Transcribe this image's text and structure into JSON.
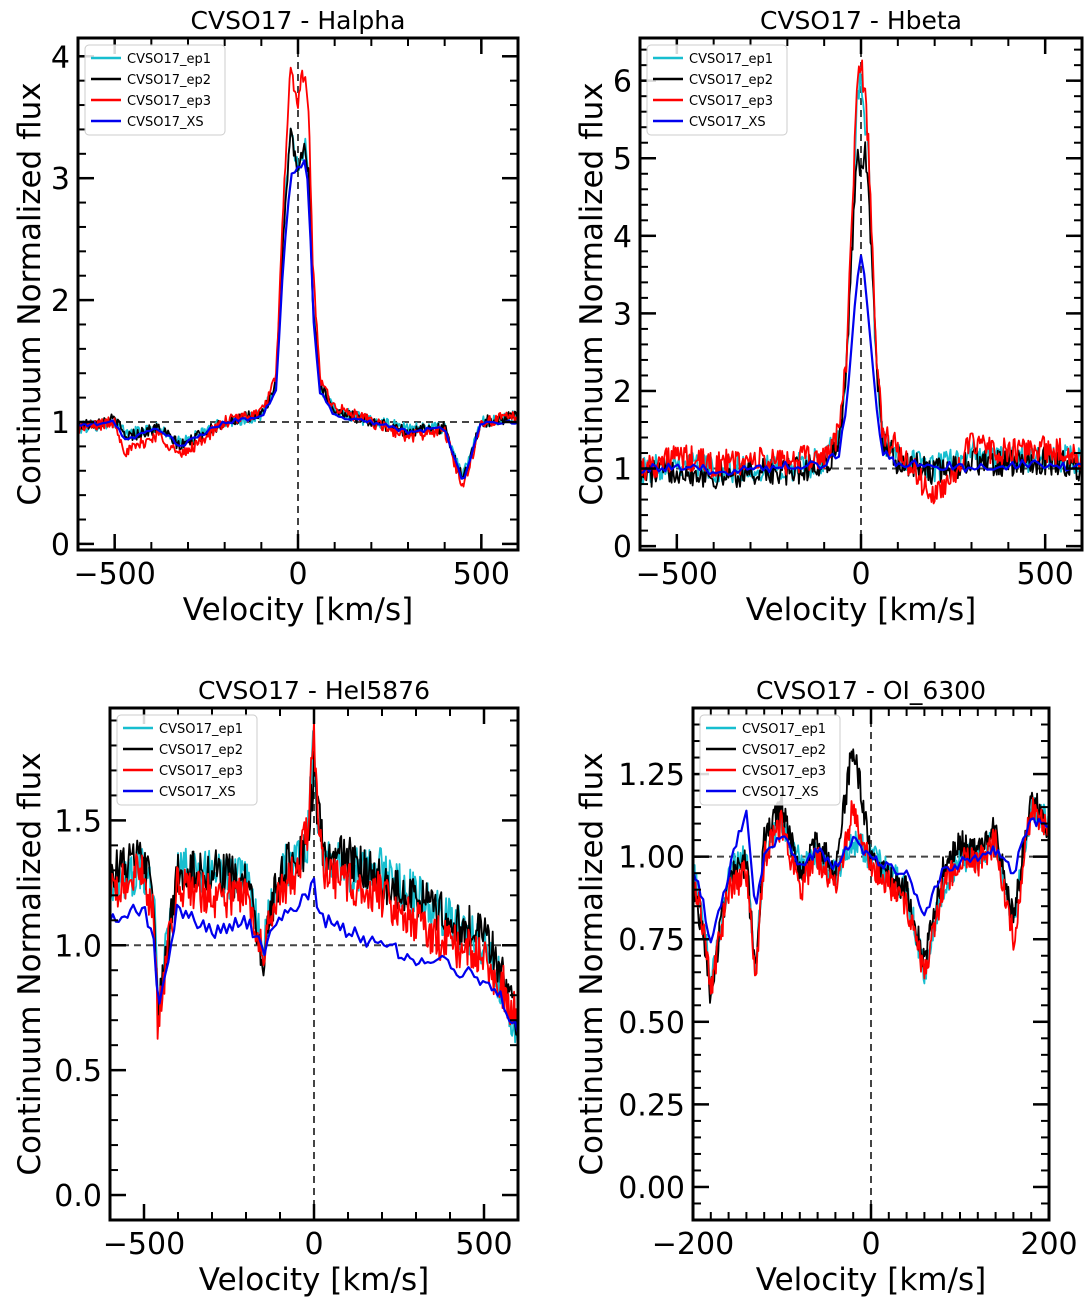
{
  "figure": {
    "background": "#ffffff"
  },
  "series_styles": [
    {
      "name": "CVSO17_ep1",
      "color": "#17becf"
    },
    {
      "name": "CVSO17_ep2",
      "color": "#000000"
    },
    {
      "name": "CVSO17_ep3",
      "color": "#ff0000"
    },
    {
      "name": "CVSO17_XS",
      "color": "#0000ee"
    }
  ],
  "chart_data": [
    {
      "type": "line",
      "title": "CVSO17 - Halpha",
      "xlabel": "Velocity [km/s]",
      "ylabel": "Continuum Normalized flux",
      "xlim": [
        -600,
        600
      ],
      "ylim": [
        -0.05,
        4.15
      ],
      "xticks": [
        -500,
        0,
        500
      ],
      "xtick_labels": [
        "−500",
        "0",
        "500"
      ],
      "xminor_step": 100,
      "yticks": [
        0,
        1,
        2,
        3,
        4
      ],
      "ytick_labels": [
        "0",
        "1",
        "2",
        "3",
        "4"
      ],
      "yminor_step": 0.2,
      "hline": 1.0,
      "vline": 0,
      "legend": "top-left",
      "series": [
        {
          "name": "CVSO17_ep1",
          "x": [
            -600,
            -500,
            -470,
            -380,
            -320,
            -200,
            -100,
            -60,
            -40,
            -20,
            -10,
            0,
            10,
            20,
            30,
            40,
            60,
            100,
            200,
            300,
            400,
            450,
            500,
            600
          ],
          "y": [
            0.95,
            1.0,
            0.9,
            0.95,
            0.82,
            1.0,
            1.05,
            1.3,
            2.6,
            3.45,
            3.2,
            3.1,
            3.15,
            3.3,
            3.0,
            2.0,
            1.3,
            1.1,
            1.0,
            0.95,
            0.95,
            0.55,
            1.0,
            1.05
          ]
        },
        {
          "name": "CVSO17_ep2",
          "x": [
            -600,
            -500,
            -470,
            -380,
            -320,
            -200,
            -100,
            -60,
            -40,
            -20,
            -10,
            0,
            10,
            20,
            30,
            40,
            60,
            100,
            200,
            300,
            400,
            450,
            500,
            600
          ],
          "y": [
            0.97,
            1.02,
            0.88,
            0.95,
            0.8,
            1.0,
            1.06,
            1.3,
            2.5,
            3.4,
            3.2,
            3.05,
            3.2,
            3.25,
            3.0,
            2.0,
            1.3,
            1.1,
            1.0,
            0.92,
            0.95,
            0.52,
            1.0,
            1.05
          ]
        },
        {
          "name": "CVSO17_ep3",
          "x": [
            -600,
            -500,
            -470,
            -380,
            -320,
            -200,
            -100,
            -60,
            -40,
            -20,
            -10,
            0,
            10,
            20,
            30,
            40,
            60,
            100,
            200,
            300,
            400,
            450,
            500,
            600
          ],
          "y": [
            0.95,
            1.0,
            0.75,
            0.9,
            0.72,
            1.0,
            1.08,
            1.35,
            2.8,
            3.95,
            3.7,
            3.6,
            3.85,
            3.8,
            3.5,
            2.3,
            1.35,
            1.12,
            1.0,
            0.88,
            0.93,
            0.45,
            1.0,
            1.05
          ]
        },
        {
          "name": "CVSO17_XS",
          "x": [
            -600,
            -500,
            -470,
            -380,
            -320,
            -200,
            -100,
            -60,
            -40,
            -20,
            -10,
            0,
            10,
            20,
            30,
            40,
            60,
            100,
            200,
            300,
            400,
            450,
            500,
            600
          ],
          "y": [
            0.97,
            1.0,
            0.85,
            0.95,
            0.8,
            1.0,
            1.04,
            1.25,
            2.3,
            3.05,
            3.05,
            3.1,
            3.1,
            3.15,
            2.9,
            1.9,
            1.25,
            1.05,
            1.0,
            0.92,
            0.95,
            0.5,
            1.0,
            1.0
          ]
        }
      ]
    },
    {
      "type": "line",
      "title": "CVSO17 - Hbeta",
      "xlabel": "Velocity [km/s]",
      "ylabel": "Continuum Normalized flux",
      "xlim": [
        -600,
        600
      ],
      "ylim": [
        -0.05,
        6.55
      ],
      "xticks": [
        -500,
        0,
        500
      ],
      "xtick_labels": [
        "−500",
        "0",
        "500"
      ],
      "xminor_step": 100,
      "yticks": [
        0,
        1,
        2,
        3,
        4,
        5,
        6
      ],
      "ytick_labels": [
        "0",
        "1",
        "2",
        "3",
        "4",
        "5",
        "6"
      ],
      "yminor_step": 0.2,
      "hline": 1.0,
      "vline": 0,
      "legend": "top-left",
      "series": [
        {
          "name": "CVSO17_ep1",
          "x": [
            -600,
            -500,
            -400,
            -300,
            -200,
            -100,
            -60,
            -40,
            -20,
            -10,
            0,
            10,
            20,
            40,
            60,
            100,
            200,
            300,
            400,
            500,
            600
          ],
          "y": [
            0.95,
            1.1,
            1.0,
            1.0,
            1.0,
            1.1,
            1.4,
            2.2,
            4.5,
            5.8,
            6.1,
            5.5,
            5.0,
            2.4,
            1.3,
            1.2,
            1.0,
            1.2,
            1.1,
            1.15,
            1.1
          ]
        },
        {
          "name": "CVSO17_ep2",
          "x": [
            -600,
            -500,
            -400,
            -300,
            -200,
            -100,
            -60,
            -40,
            -20,
            -10,
            0,
            10,
            20,
            40,
            60,
            100,
            200,
            300,
            400,
            500,
            600
          ],
          "y": [
            0.9,
            1.0,
            0.9,
            0.95,
            0.95,
            1.05,
            1.3,
            2.2,
            4.3,
            5.2,
            4.8,
            5.1,
            4.7,
            2.5,
            1.3,
            1.1,
            0.95,
            1.1,
            1.05,
            1.1,
            1.0
          ]
        },
        {
          "name": "CVSO17_ep3",
          "x": [
            -600,
            -500,
            -400,
            -300,
            -200,
            -100,
            -60,
            -40,
            -20,
            -10,
            0,
            10,
            20,
            40,
            60,
            100,
            200,
            300,
            400,
            500,
            600
          ],
          "y": [
            1.0,
            1.15,
            1.05,
            1.1,
            1.1,
            1.15,
            1.45,
            2.4,
            4.8,
            6.1,
            6.2,
            5.9,
            5.2,
            2.6,
            1.4,
            1.25,
            0.6,
            1.3,
            1.2,
            1.25,
            1.15
          ]
        },
        {
          "name": "CVSO17_XS",
          "x": [
            -600,
            -500,
            -400,
            -300,
            -200,
            -100,
            -60,
            -40,
            -20,
            -10,
            0,
            10,
            20,
            40,
            60,
            100,
            200,
            300,
            400,
            500,
            600
          ],
          "y": [
            1.0,
            1.0,
            0.98,
            0.98,
            1.05,
            1.05,
            1.2,
            1.8,
            2.9,
            3.5,
            3.8,
            3.5,
            3.0,
            1.8,
            1.2,
            1.05,
            1.05,
            1.0,
            1.05,
            1.05,
            1.0
          ]
        }
      ]
    },
    {
      "type": "line",
      "title": "CVSO17 - HeI5876",
      "xlabel": "Velocity [km/s]",
      "ylabel": "Continuum Normalized flux",
      "xlim": [
        -600,
        600
      ],
      "ylim": [
        -0.1,
        1.95
      ],
      "xticks": [
        -500,
        0,
        500
      ],
      "xtick_labels": [
        "−500",
        "0",
        "500"
      ],
      "xminor_step": 100,
      "yticks": [
        0.0,
        0.5,
        1.0,
        1.5
      ],
      "ytick_labels": [
        "0.0",
        "0.5",
        "1.0",
        "1.5"
      ],
      "yminor_step": 0.1,
      "hline": 1.0,
      "vline": 0,
      "legend": "top-left",
      "series": [
        {
          "name": "CVSO17_ep1",
          "x": [
            -600,
            -500,
            -470,
            -460,
            -400,
            -300,
            -200,
            -150,
            -100,
            -50,
            -20,
            0,
            10,
            30,
            100,
            200,
            300,
            400,
            500,
            550,
            600
          ],
          "y": [
            1.25,
            1.3,
            1.2,
            0.75,
            1.3,
            1.3,
            1.25,
            1.0,
            1.3,
            1.35,
            1.4,
            1.85,
            1.55,
            1.35,
            1.3,
            1.3,
            1.2,
            1.1,
            1.0,
            0.85,
            0.65
          ]
        },
        {
          "name": "CVSO17_ep2",
          "x": [
            -600,
            -500,
            -470,
            -460,
            -400,
            -300,
            -200,
            -150,
            -100,
            -50,
            -20,
            0,
            10,
            30,
            100,
            200,
            300,
            400,
            500,
            550,
            600
          ],
          "y": [
            1.3,
            1.35,
            1.15,
            0.7,
            1.3,
            1.3,
            1.25,
            0.95,
            1.3,
            1.35,
            1.4,
            1.7,
            1.55,
            1.35,
            1.35,
            1.25,
            1.2,
            1.1,
            1.05,
            0.9,
            0.7
          ]
        },
        {
          "name": "CVSO17_ep3",
          "x": [
            -600,
            -500,
            -470,
            -460,
            -400,
            -300,
            -200,
            -150,
            -100,
            -50,
            -20,
            0,
            10,
            30,
            100,
            200,
            300,
            400,
            500,
            550,
            600
          ],
          "y": [
            1.2,
            1.3,
            1.1,
            0.7,
            1.25,
            1.2,
            1.2,
            1.0,
            1.2,
            1.3,
            1.45,
            1.9,
            1.5,
            1.3,
            1.25,
            1.2,
            1.1,
            1.0,
            0.95,
            0.85,
            0.7
          ]
        },
        {
          "name": "CVSO17_XS",
          "x": [
            -600,
            -500,
            -470,
            -460,
            -400,
            -300,
            -200,
            -150,
            -100,
            -50,
            -20,
            0,
            10,
            30,
            100,
            200,
            300,
            400,
            500,
            550,
            600
          ],
          "y": [
            1.1,
            1.15,
            1.0,
            0.75,
            1.15,
            1.05,
            1.1,
            0.98,
            1.1,
            1.15,
            1.2,
            1.25,
            1.15,
            1.1,
            1.05,
            1.0,
            0.95,
            0.92,
            0.85,
            0.8,
            0.65
          ]
        }
      ]
    },
    {
      "type": "line",
      "title": "CVSO17 - OI_6300",
      "xlabel": "Velocity [km/s]",
      "ylabel": "Continuum Normalized flux",
      "xlim": [
        -200,
        200
      ],
      "ylim": [
        -0.1,
        1.45
      ],
      "xticks": [
        -200,
        0,
        200
      ],
      "xtick_labels": [
        "−200",
        "0",
        "200"
      ],
      "xminor_step": 20,
      "yticks": [
        0.0,
        0.25,
        0.5,
        0.75,
        1.0,
        1.25
      ],
      "ytick_labels": [
        "0.00",
        "0.25",
        "0.50",
        "0.75",
        "1.00",
        "1.25"
      ],
      "yminor_step": 0.05,
      "hline": 1.0,
      "vline": 0,
      "legend": "top-left",
      "series": [
        {
          "name": "CVSO17_ep1",
          "x": [
            -200,
            -190,
            -180,
            -160,
            -140,
            -130,
            -120,
            -100,
            -80,
            -60,
            -40,
            -20,
            0,
            20,
            40,
            60,
            80,
            100,
            120,
            140,
            160,
            180,
            200
          ],
          "y": [
            0.95,
            0.85,
            0.6,
            0.95,
            1.0,
            0.65,
            1.0,
            1.1,
            0.98,
            1.0,
            0.95,
            1.05,
            1.0,
            0.95,
            0.9,
            0.65,
            0.9,
            1.0,
            1.0,
            1.05,
            0.8,
            1.15,
            1.1
          ]
        },
        {
          "name": "CVSO17_ep2",
          "x": [
            -200,
            -190,
            -180,
            -160,
            -140,
            -130,
            -120,
            -100,
            -80,
            -60,
            -40,
            -20,
            0,
            20,
            40,
            60,
            80,
            100,
            120,
            140,
            160,
            180,
            200
          ],
          "y": [
            0.9,
            0.8,
            0.58,
            0.95,
            0.98,
            0.65,
            1.05,
            1.15,
            0.95,
            1.05,
            0.95,
            1.35,
            1.0,
            0.95,
            0.9,
            0.68,
            0.95,
            1.05,
            1.0,
            1.1,
            0.8,
            1.2,
            1.05
          ]
        },
        {
          "name": "CVSO17_ep3",
          "x": [
            -200,
            -190,
            -180,
            -160,
            -140,
            -130,
            -120,
            -100,
            -80,
            -60,
            -40,
            -20,
            0,
            20,
            40,
            60,
            80,
            100,
            120,
            140,
            160,
            180,
            200
          ],
          "y": [
            0.92,
            0.82,
            0.6,
            0.9,
            0.95,
            0.63,
            1.0,
            1.1,
            0.9,
            1.0,
            0.9,
            1.15,
            0.98,
            0.92,
            0.85,
            0.65,
            0.9,
            1.0,
            0.98,
            1.05,
            0.75,
            1.15,
            1.08
          ]
        },
        {
          "name": "CVSO17_XS",
          "x": [
            -200,
            -190,
            -180,
            -160,
            -140,
            -130,
            -120,
            -100,
            -80,
            -60,
            -40,
            -20,
            0,
            20,
            40,
            60,
            80,
            100,
            120,
            140,
            160,
            180,
            200
          ],
          "y": [
            0.95,
            0.88,
            0.73,
            0.95,
            1.15,
            0.82,
            1.0,
            1.07,
            0.97,
            1.02,
            0.97,
            1.05,
            1.0,
            0.97,
            0.95,
            0.82,
            0.95,
            0.98,
            1.0,
            1.02,
            0.95,
            1.12,
            1.08
          ]
        }
      ]
    }
  ]
}
